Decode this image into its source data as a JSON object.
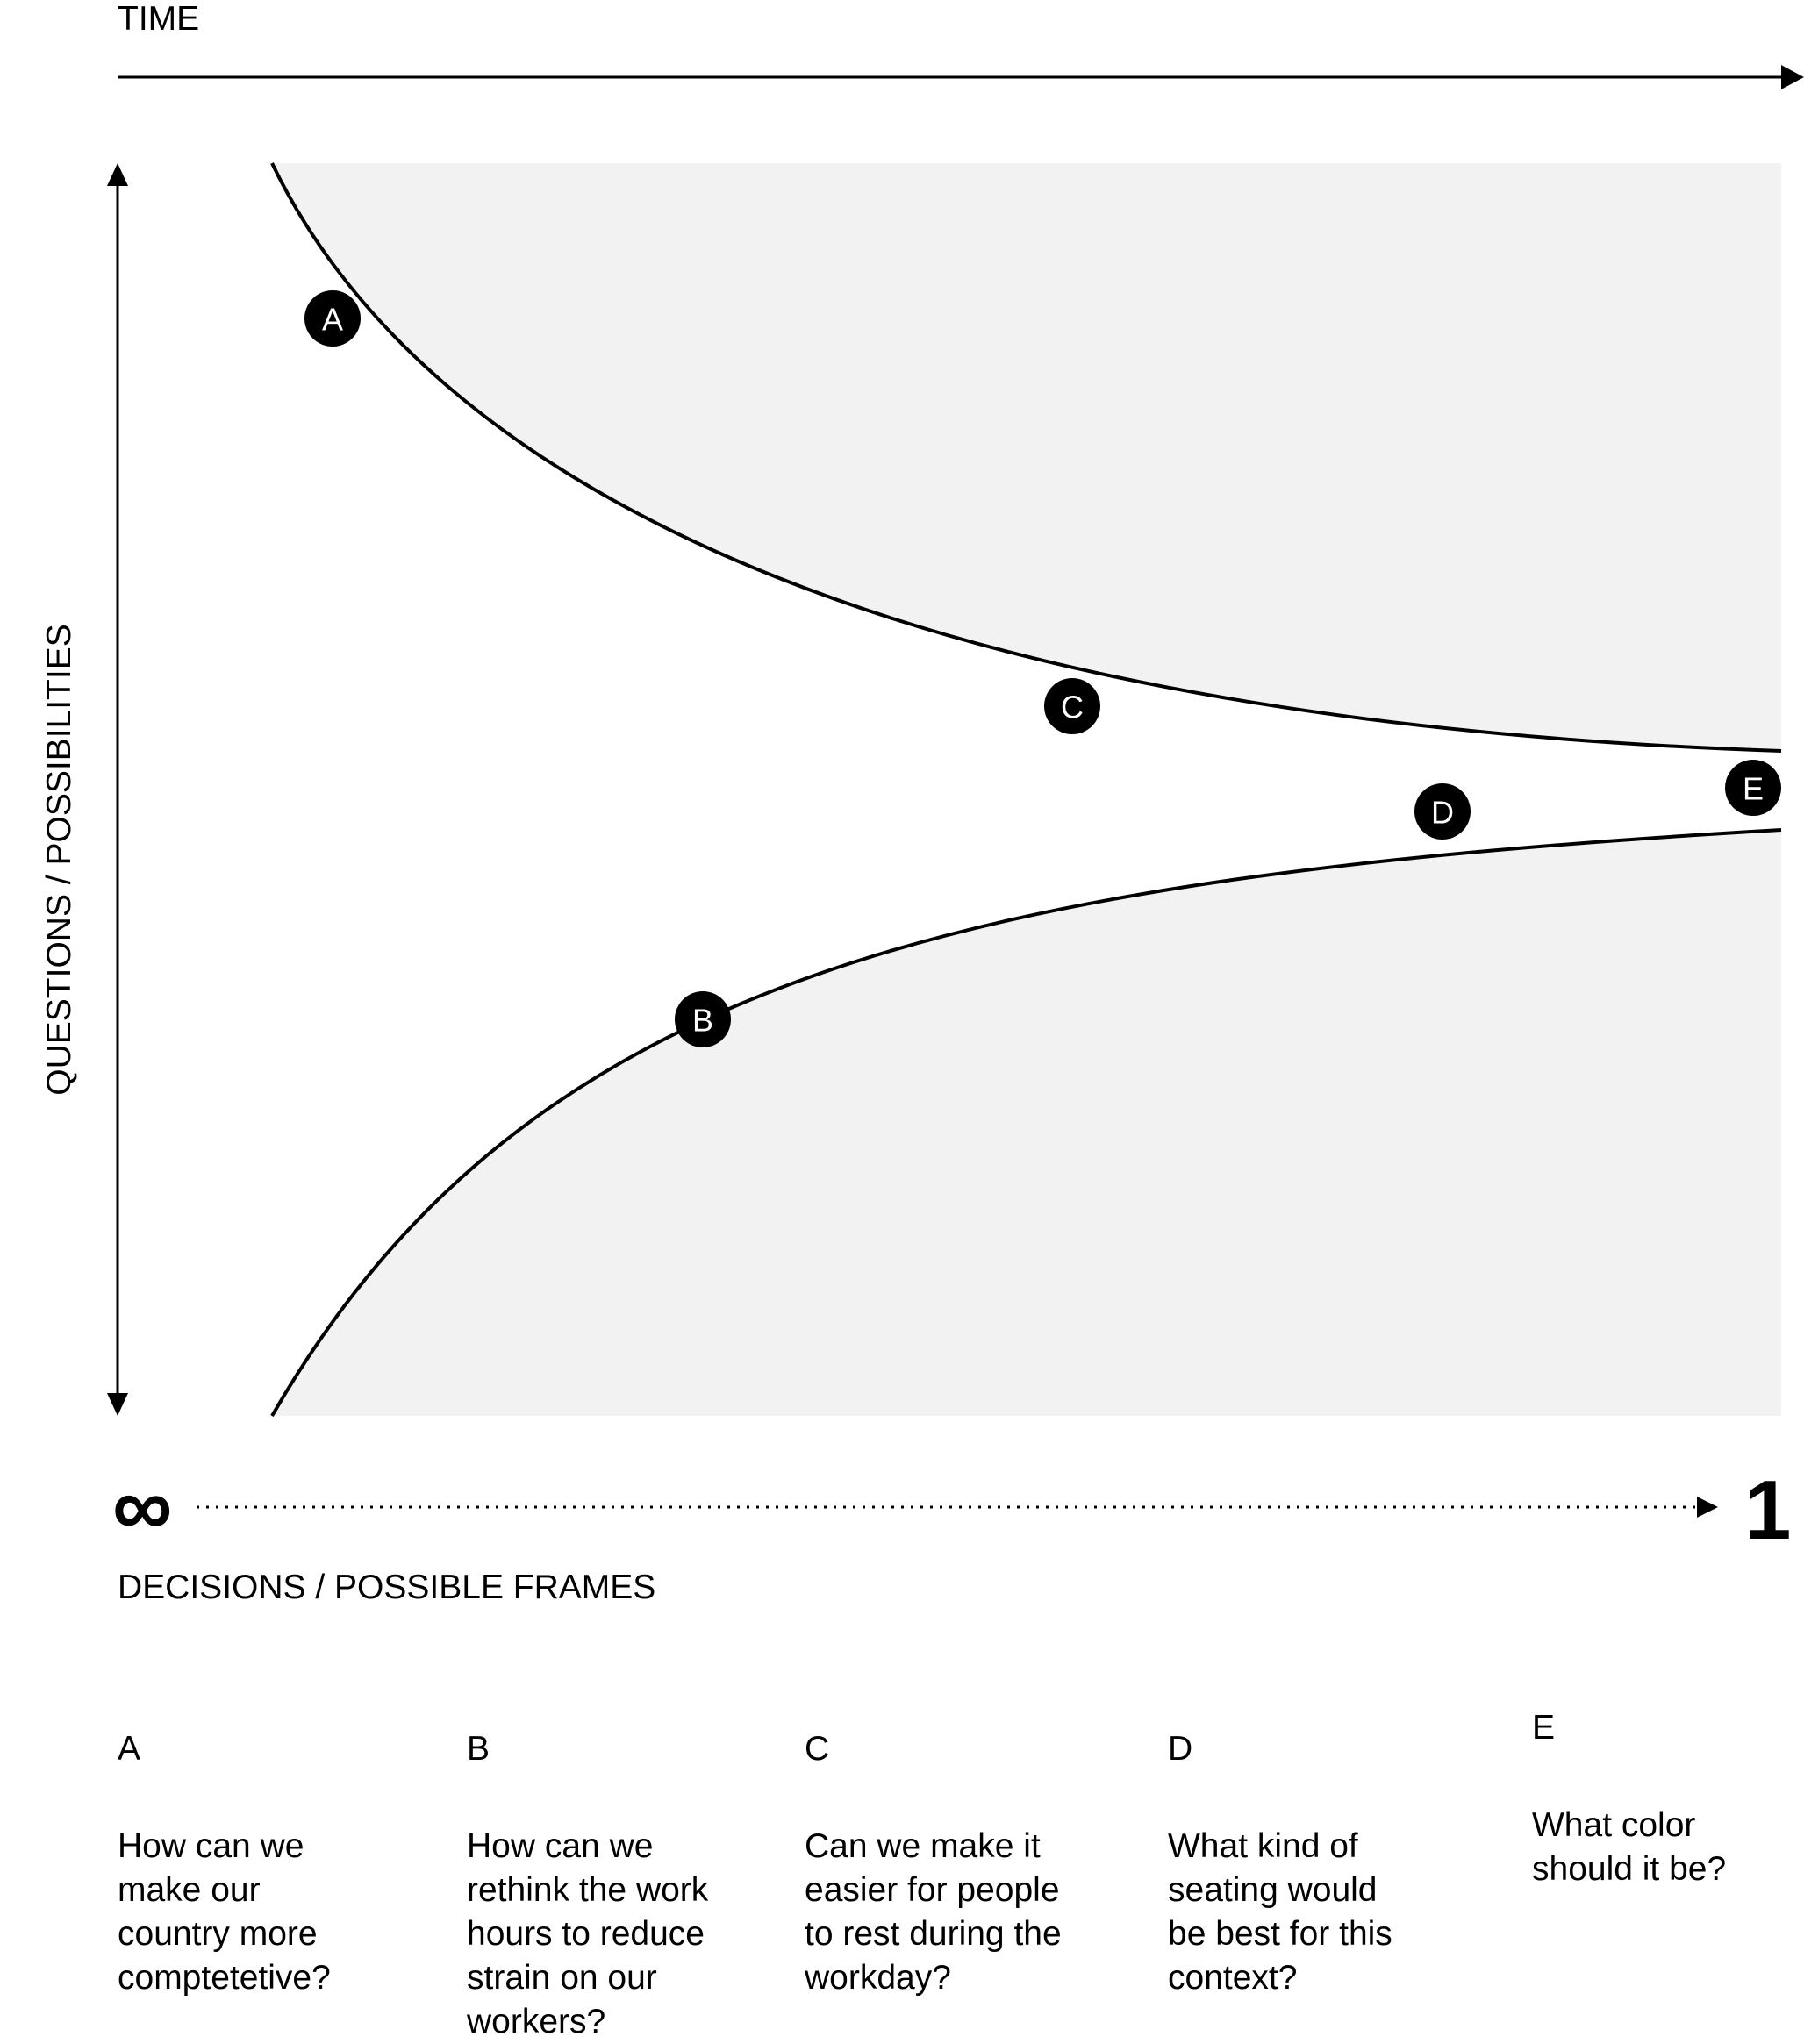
{
  "axes": {
    "time_label": "TIME",
    "vertical_label": "QUESTIONS / POSSIBILITIES",
    "decisions_label": "DECISIONS / POSSIBLE FRAMES",
    "infinity_symbol": "∞",
    "one_symbol": "1"
  },
  "markers": [
    {
      "id": "A"
    },
    {
      "id": "B"
    },
    {
      "id": "C"
    },
    {
      "id": "D"
    },
    {
      "id": "E"
    }
  ],
  "questions": [
    {
      "letter": "A",
      "text": "How can we\nmake our\ncountry more\ncomptetetive?"
    },
    {
      "letter": "B",
      "text": "How can we\nrethink the work\nhours to reduce\nstrain on our\nworkers?"
    },
    {
      "letter": "C",
      "text": "Can we make it\neasier for people\nto rest during the\nworkday?"
    },
    {
      "letter": "D",
      "text": "What kind of\nseating would\nbe best for this\ncontext?"
    },
    {
      "letter": "E",
      "text": "What color\nshould it be?"
    }
  ],
  "colors": {
    "shading": "#f2f2f2",
    "line": "#000000",
    "marker_fill": "#000000",
    "marker_text": "#ffffff"
  }
}
